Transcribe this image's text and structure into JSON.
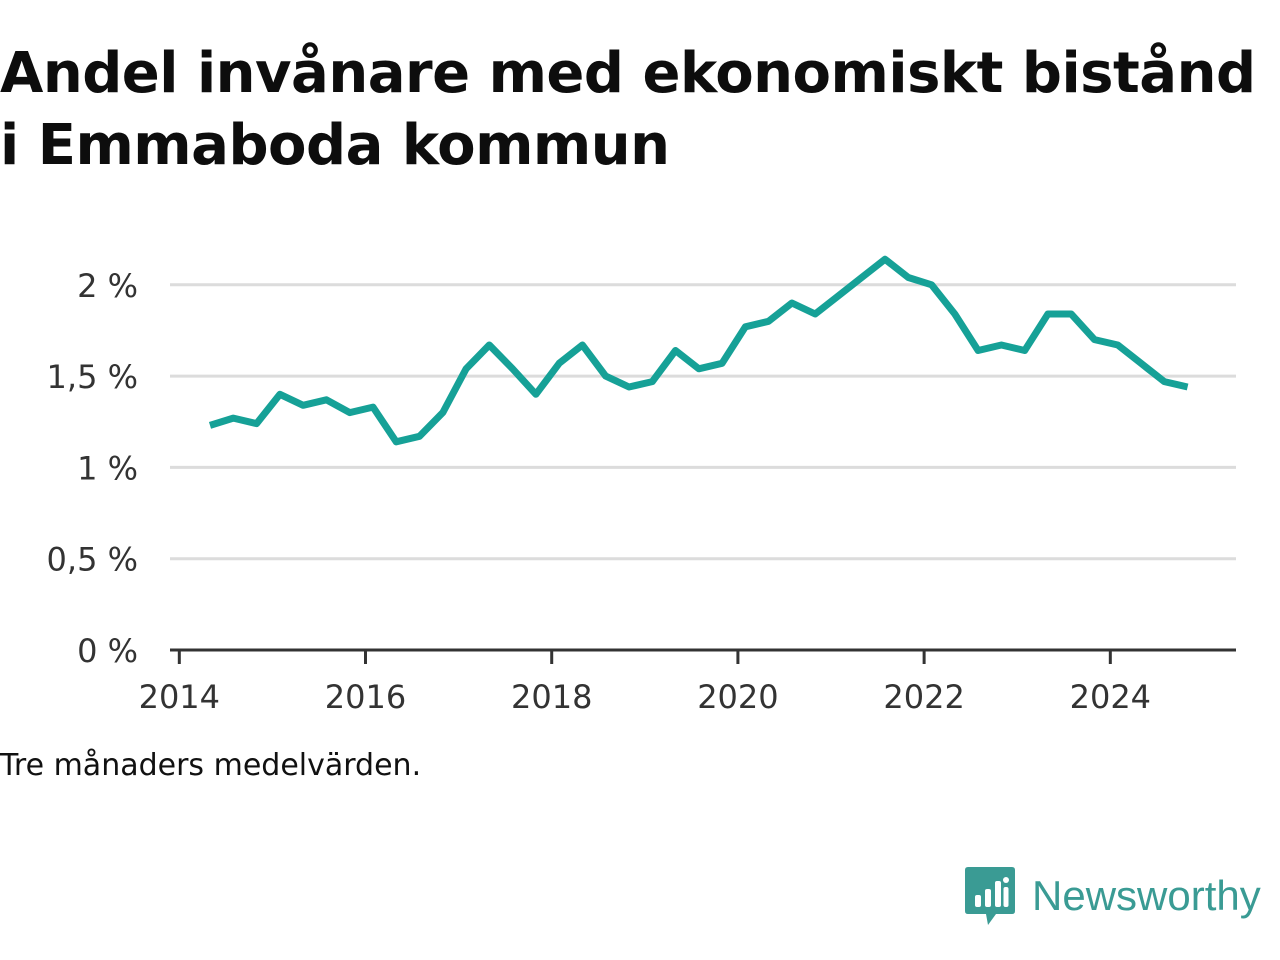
{
  "title": "Andel invånare med ekonomiskt bistånd i Emmaboda kommun",
  "note": "Tre månaders medelvärden.",
  "brand": {
    "name": "Newsworthy",
    "icon": "newsworthy-logo-icon",
    "color": "#3a9b94"
  },
  "chart_data": {
    "type": "line",
    "title": "Andel invånare med ekonomiskt bistånd i Emmaboda kommun",
    "xlabel": "",
    "ylabel": "",
    "xlim": [
      2013.9,
      2025.35
    ],
    "ylim": [
      0,
      2.3
    ],
    "x_ticks": [
      2014,
      2016,
      2018,
      2020,
      2022,
      2024
    ],
    "x_tick_labels": [
      "2014",
      "2016",
      "2018",
      "2020",
      "2022",
      "2024"
    ],
    "y_ticks": [
      0,
      0.5,
      1,
      1.5,
      2
    ],
    "y_tick_labels": [
      "0 %",
      "0,5 %",
      "1 %",
      "1,5 %",
      "2 %"
    ],
    "grid": true,
    "line_color": "#16a197",
    "series": [
      {
        "x": [
          2014.33,
          2014.58,
          2014.83,
          2015.08,
          2015.33,
          2015.58,
          2015.83,
          2016.08,
          2016.33,
          2016.58,
          2016.83,
          2017.08,
          2017.33,
          2017.58,
          2017.83,
          2018.08,
          2018.33,
          2018.58,
          2018.83,
          2019.08,
          2019.33,
          2019.58,
          2019.83,
          2020.08,
          2020.33,
          2020.58,
          2020.83,
          2021.08,
          2021.33,
          2021.58,
          2021.83,
          2022.08,
          2022.33,
          2022.58,
          2022.83,
          2023.08,
          2023.33,
          2023.58,
          2023.83,
          2024.08,
          2024.33,
          2024.58,
          2024.83
        ],
        "values": [
          1.23,
          1.27,
          1.24,
          1.4,
          1.34,
          1.37,
          1.3,
          1.33,
          1.14,
          1.17,
          1.3,
          1.54,
          1.67,
          1.54,
          1.4,
          1.57,
          1.67,
          1.5,
          1.44,
          1.47,
          1.64,
          1.54,
          1.57,
          1.77,
          1.8,
          1.9,
          1.84,
          1.94,
          2.04,
          2.14,
          2.04,
          2.0,
          1.84,
          1.64,
          1.67,
          1.64,
          1.84,
          1.84,
          1.7,
          1.67,
          1.57,
          1.47,
          1.44
        ]
      }
    ]
  }
}
